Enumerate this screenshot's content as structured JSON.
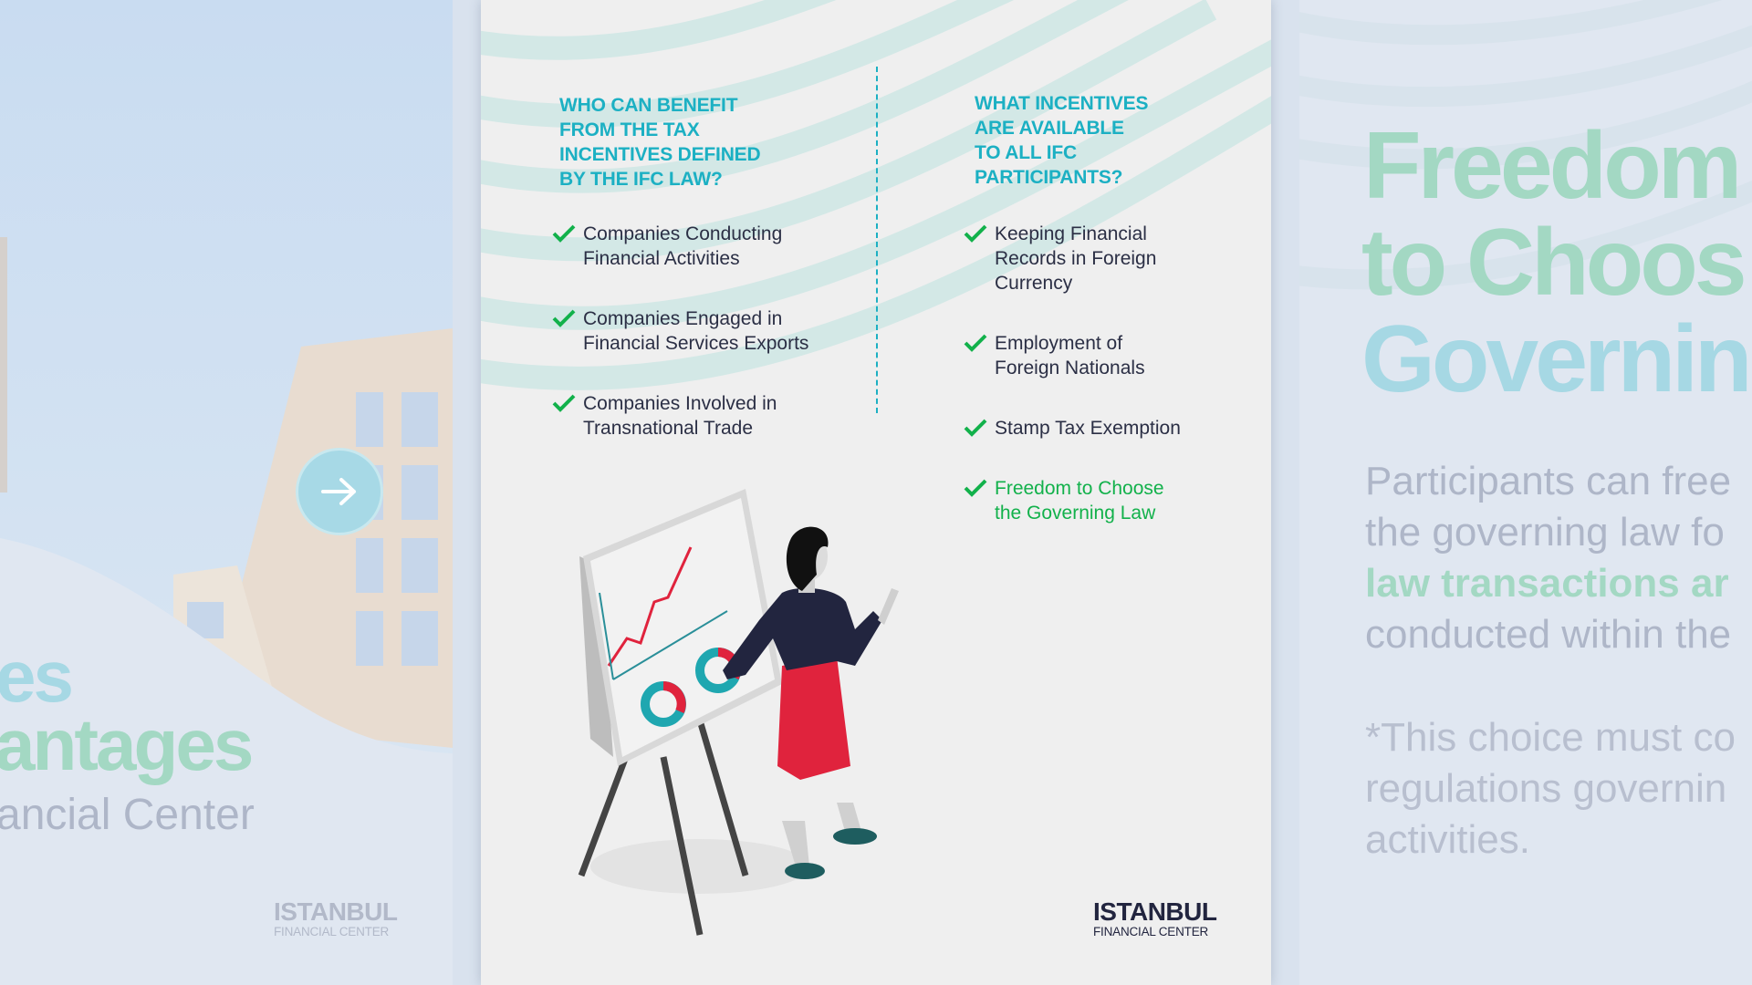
{
  "left_panel": {
    "title_line1": "es",
    "title_line2": "antages",
    "subtitle": "ancial Center",
    "next_button_icon": "arrow-right-icon",
    "logo": {
      "line1": "ISTANBUL",
      "line2": "FINANCIAL CENTER"
    }
  },
  "center_panel": {
    "left_column": {
      "heading": [
        "WHO CAN BENEFIT",
        "FROM THE TAX",
        "INCENTIVES DEFINED",
        "BY THE IFC LAW?"
      ],
      "items": [
        {
          "lines": [
            "Companies Conducting",
            "Financial Activities"
          ]
        },
        {
          "lines": [
            "Companies Engaged in",
            "Financial Services Exports"
          ]
        },
        {
          "lines": [
            "Companies Involved in",
            "Transnational Trade"
          ]
        }
      ]
    },
    "right_column": {
      "heading": [
        "WHAT INCENTIVES",
        "ARE AVAILABLE",
        "TO ALL IFC",
        "PARTICIPANTS?"
      ],
      "items": [
        {
          "lines": [
            "Keeping Financial",
            "Records in Foreign",
            "Currency"
          ]
        },
        {
          "lines": [
            "Employment of",
            "Foreign Nationals"
          ]
        },
        {
          "lines": [
            "Stamp Tax Exemption"
          ]
        },
        {
          "lines": [
            "Freedom to Choose",
            "the Governing Law"
          ],
          "highlighted": true
        }
      ]
    },
    "logo": {
      "line1": "ISTANBUL",
      "line2": "FINANCIAL CENTER"
    }
  },
  "right_panel": {
    "title_lines": [
      "Freedom",
      "to Choos",
      "Governin"
    ],
    "body_lines": [
      "Participants can free",
      "the governing law fo",
      "law transactions ar",
      "conducted within the"
    ],
    "footnote_lines": [
      "*This choice must co",
      "regulations governin",
      "activities."
    ]
  },
  "colors": {
    "heading_cyan": "#1cb0c3",
    "check_green": "#12b14b",
    "text_dark": "#2b2f45",
    "faded_green": "#a3d8c3",
    "faded_cyan": "#a6d8e4"
  }
}
